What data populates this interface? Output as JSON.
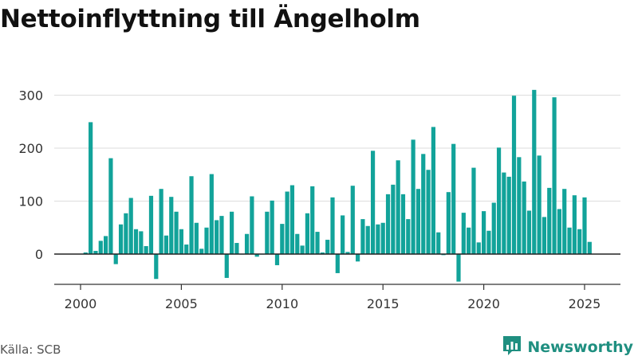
{
  "title": "Nettoinflyttning till Ängelholm",
  "source": "Källa: SCB",
  "brand": {
    "name": "Newsworthy",
    "icon": "newsworthy-logo-icon",
    "color": "#1f8f80"
  },
  "colors": {
    "bar": "#12a39a",
    "grid": "#dddddd",
    "axis": "#333333",
    "text": "#333333"
  },
  "chart_data": {
    "type": "bar",
    "title": "Nettoinflyttning till Ängelholm",
    "xlabel": "",
    "ylabel": "",
    "x_ticks": [
      "2000",
      "2005",
      "2010",
      "2015",
      "2020",
      "2025"
    ],
    "y_ticks": [
      "0",
      "100",
      "200",
      "300"
    ],
    "ylim": [
      -60,
      340
    ],
    "xlim": [
      1999.0,
      2026.0
    ],
    "grid": true,
    "x": [
      2000.25,
      2000.5,
      2000.75,
      2001.0,
      2001.25,
      2001.5,
      2001.75,
      2002.0,
      2002.25,
      2002.5,
      2002.75,
      2003.0,
      2003.25,
      2003.5,
      2003.75,
      2004.0,
      2004.25,
      2004.5,
      2004.75,
      2005.0,
      2005.25,
      2005.5,
      2005.75,
      2006.0,
      2006.25,
      2006.5,
      2006.75,
      2007.0,
      2007.25,
      2007.5,
      2007.75,
      2008.0,
      2008.25,
      2008.5,
      2008.75,
      2009.0,
      2009.25,
      2009.5,
      2009.75,
      2010.0,
      2010.25,
      2010.5,
      2010.75,
      2011.0,
      2011.25,
      2011.5,
      2011.75,
      2012.0,
      2012.25,
      2012.5,
      2012.75,
      2013.0,
      2013.25,
      2013.5,
      2013.75,
      2014.0,
      2014.25,
      2014.5,
      2014.75,
      2015.0,
      2015.25,
      2015.5,
      2015.75,
      2016.0,
      2016.25,
      2016.5,
      2016.75,
      2017.0,
      2017.25,
      2017.5,
      2017.75,
      2018.0,
      2018.25,
      2018.5,
      2018.75,
      2019.0,
      2019.25,
      2019.5,
      2019.75,
      2020.0,
      2020.25,
      2020.5,
      2020.75,
      2021.0,
      2021.25,
      2021.5,
      2021.75,
      2022.0,
      2022.25,
      2022.5,
      2022.75,
      2023.0,
      2023.25,
      2023.5,
      2023.75,
      2024.0,
      2024.25,
      2024.5,
      2024.75,
      2025.0,
      2025.25
    ],
    "values": [
      3,
      249,
      6,
      25,
      34,
      181,
      -19,
      56,
      77,
      106,
      47,
      43,
      15,
      110,
      -47,
      123,
      35,
      108,
      80,
      47,
      18,
      147,
      59,
      10,
      50,
      151,
      64,
      72,
      -45,
      80,
      21,
      0,
      38,
      109,
      -5,
      0,
      80,
      101,
      -21,
      57,
      118,
      130,
      38,
      16,
      77,
      128,
      42,
      3,
      27,
      107,
      -36,
      73,
      4,
      129,
      -14,
      66,
      53,
      195,
      56,
      59,
      113,
      131,
      177,
      113,
      66,
      216,
      123,
      189,
      159,
      240,
      41,
      -2,
      117,
      208,
      -52,
      78,
      50,
      163,
      22,
      81,
      44,
      97,
      201,
      154,
      146,
      299,
      183,
      137,
      82,
      310,
      186,
      70,
      125,
      296,
      85,
      123,
      50,
      111,
      47,
      107,
      23
    ]
  }
}
